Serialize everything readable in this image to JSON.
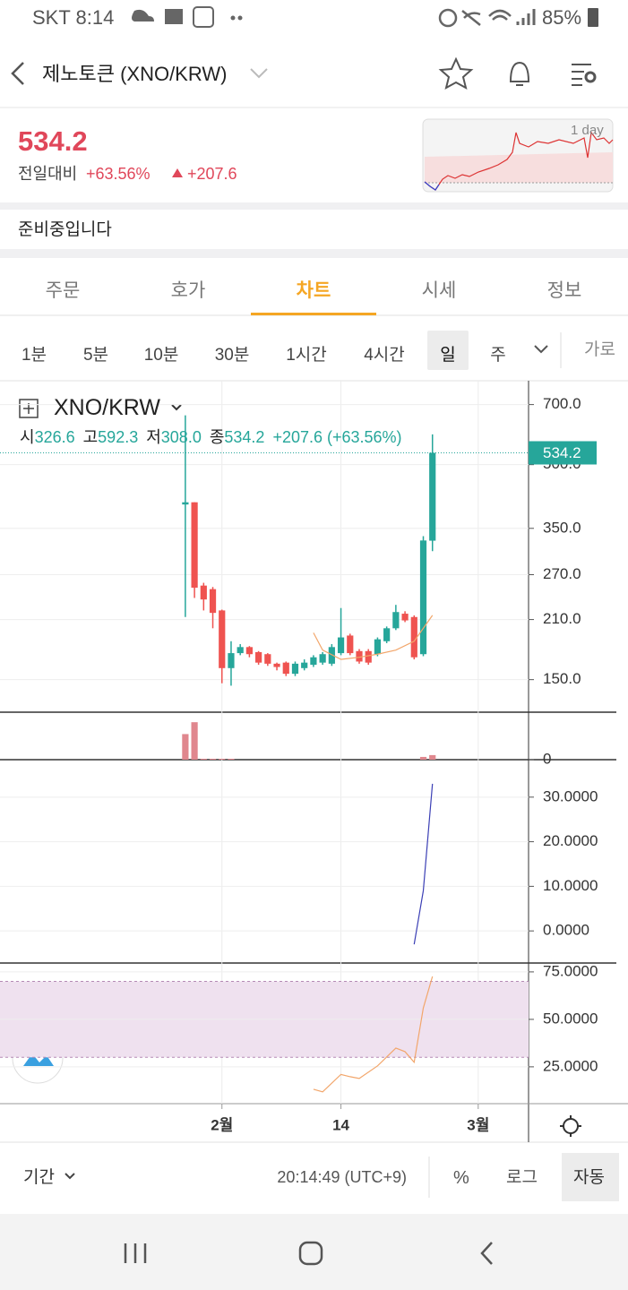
{
  "status_bar": {
    "carrier_time": "SKT 8:14",
    "battery": "85%"
  },
  "header": {
    "title": "제노토큰 (XNO/KRW)"
  },
  "price": {
    "value": "534.2",
    "change_label": "전일대비",
    "change_percent": "+63.56%",
    "change_amount": "+207.6",
    "sparkline_label": "1 day"
  },
  "notice": "준비중입니다",
  "tabs": [
    "주문",
    "호가",
    "차트",
    "시세",
    "정보"
  ],
  "active_tab": 2,
  "intervals": [
    "1분",
    "5분",
    "10분",
    "30분",
    "1시간",
    "4시간",
    "일",
    "주"
  ],
  "selected_interval": 6,
  "chart_style": "가로",
  "legend": {
    "symbol": "XNO/KRW",
    "open_label": "시",
    "open": "326.6",
    "high_label": "고",
    "high": "592.3",
    "low_label": "저",
    "low": "308.0",
    "close_label": "종",
    "close": "534.2",
    "change": "+207.6 (+63.56%)"
  },
  "chart_data": [
    {
      "type": "candlestick",
      "log_scale": true,
      "grid": true,
      "up_color": "#26a69a",
      "down_color": "#ef5350",
      "ylim": [
        125,
        800
      ],
      "yticks": [
        {
          "value": 150,
          "label": "150.0"
        },
        {
          "value": 210,
          "label": "210.0"
        },
        {
          "value": 270,
          "label": "270.0"
        },
        {
          "value": 350,
          "label": "350.0"
        },
        {
          "value": 500,
          "label": "500.0"
        },
        {
          "value": 700,
          "label": "700.0"
        }
      ],
      "xlim": [
        -20.25,
        37.5
      ],
      "xticks": [
        {
          "value": 4,
          "label": "2월"
        },
        {
          "value": 17,
          "label": "14"
        },
        {
          "value": 32,
          "label": "3월"
        }
      ],
      "candles": [
        {
          "o": 400,
          "h": 659,
          "l": 213,
          "c": 405
        },
        {
          "o": 405,
          "h": 405,
          "l": 237,
          "c": 251
        },
        {
          "o": 254,
          "h": 258,
          "l": 221,
          "c": 235
        },
        {
          "o": 249,
          "h": 252,
          "l": 200,
          "c": 218
        },
        {
          "o": 221,
          "h": 222,
          "l": 147,
          "c": 160
        },
        {
          "o": 160,
          "h": 186,
          "l": 145,
          "c": 174
        },
        {
          "o": 174,
          "h": 183,
          "l": 172,
          "c": 180
        },
        {
          "o": 180,
          "h": 181,
          "l": 170,
          "c": 173
        },
        {
          "o": 175,
          "h": 176,
          "l": 163,
          "c": 165
        },
        {
          "o": 173,
          "h": 174,
          "l": 162,
          "c": 164
        },
        {
          "o": 164,
          "h": 165,
          "l": 158,
          "c": 161
        },
        {
          "o": 165,
          "h": 166,
          "l": 153,
          "c": 155
        },
        {
          "o": 155,
          "h": 166,
          "l": 153,
          "c": 164
        },
        {
          "o": 160,
          "h": 168,
          "l": 158,
          "c": 165
        },
        {
          "o": 163,
          "h": 172,
          "l": 161,
          "c": 170
        },
        {
          "o": 165,
          "h": 175,
          "l": 163,
          "c": 173
        },
        {
          "o": 164,
          "h": 183,
          "l": 162,
          "c": 180
        },
        {
          "o": 174,
          "h": 224,
          "l": 172,
          "c": 190
        },
        {
          "o": 192,
          "h": 194,
          "l": 172,
          "c": 174
        },
        {
          "o": 176,
          "h": 178,
          "l": 164,
          "c": 166
        },
        {
          "o": 176,
          "h": 178,
          "l": 163,
          "c": 165
        },
        {
          "o": 173,
          "h": 190,
          "l": 171,
          "c": 188
        },
        {
          "o": 186,
          "h": 202,
          "l": 184,
          "c": 200
        },
        {
          "o": 200,
          "h": 228,
          "l": 198,
          "c": 219
        },
        {
          "o": 217,
          "h": 220,
          "l": 207,
          "c": 209
        },
        {
          "o": 213,
          "h": 215,
          "l": 168,
          "c": 170
        },
        {
          "o": 173,
          "h": 335,
          "l": 171,
          "c": 327
        },
        {
          "o": 326.6,
          "h": 592.3,
          "l": 308,
          "c": 534.2
        }
      ],
      "overlay": {
        "color": "#f2a66b",
        "x": [
          14,
          15,
          17,
          19,
          21,
          23,
          25,
          27
        ],
        "values": [
          195,
          177,
          168,
          170,
          173,
          177,
          186,
          215
        ]
      }
    },
    {
      "type": "bar",
      "color": "#e0878e",
      "ylim": [
        0,
        50
      ],
      "yticks": [
        0
      ],
      "values": [
        28,
        41,
        1,
        1,
        1,
        1,
        0,
        0,
        0,
        0,
        0,
        0,
        0,
        0,
        0,
        0,
        0,
        0,
        0,
        0,
        0,
        0,
        0,
        0,
        0,
        0,
        3,
        5
      ]
    },
    {
      "type": "line",
      "color": "#3b3fb5",
      "grid": true,
      "ylim": [
        -7.2,
        38
      ],
      "yticks": [
        {
          "value": 0,
          "label": "0.0000"
        },
        {
          "value": 10,
          "label": "10.0000"
        },
        {
          "value": 20,
          "label": "20.0000"
        },
        {
          "value": 30,
          "label": "30.0000"
        }
      ],
      "x": [
        25,
        26,
        27
      ],
      "values": [
        -3,
        9,
        33
      ]
    },
    {
      "type": "line",
      "color": "#f2a66b",
      "grid": true,
      "ylim": [
        5.6,
        79.2
      ],
      "band": [
        30,
        70
      ],
      "band_color": "#efe1ef",
      "yticks": [
        {
          "value": 25,
          "label": "25.0000"
        },
        {
          "value": 50,
          "label": "50.0000"
        },
        {
          "value": 75,
          "label": "75.0000"
        }
      ],
      "x": [
        14,
        15,
        17,
        18,
        19,
        21,
        23,
        24,
        25,
        26,
        27
      ],
      "values": [
        13.2,
        11.8,
        21,
        19.8,
        18.9,
        25.5,
        34.9,
        33,
        27.4,
        56,
        72.6
      ]
    }
  ],
  "footer": {
    "period": "기간",
    "time": "20:14:49 (UTC+9)",
    "percent": "%",
    "log": "로그",
    "auto": "자동"
  }
}
